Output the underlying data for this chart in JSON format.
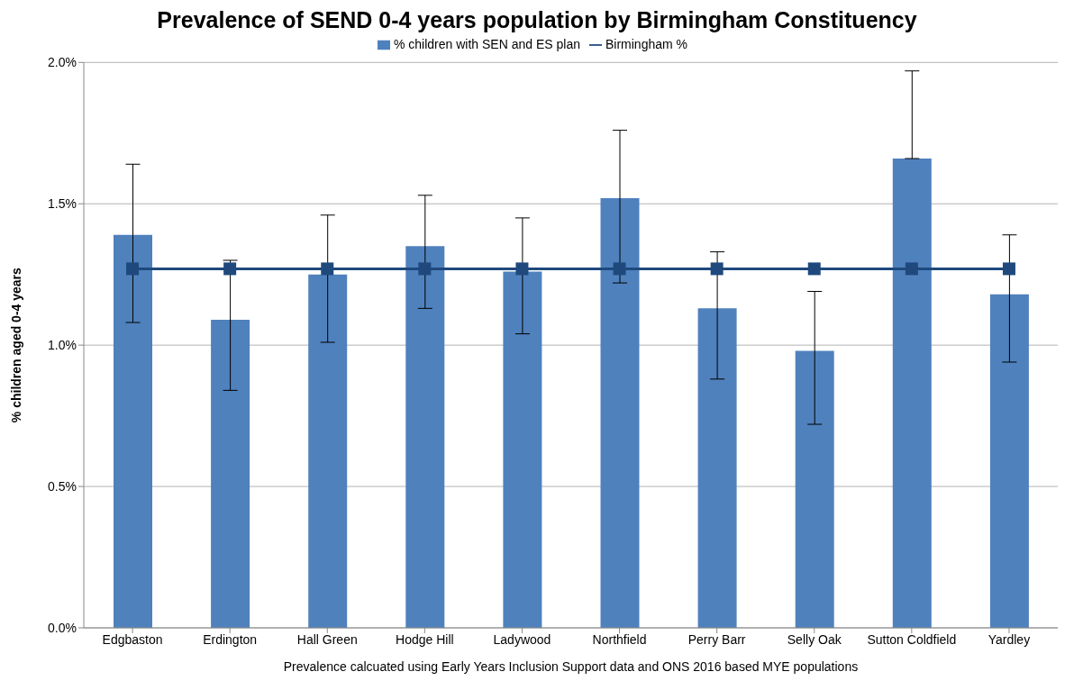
{
  "chart_data": {
    "type": "bar",
    "title": "Prevalence of SEND 0-4 years population by Birmingham Constituency",
    "xlabel": "Prevalence calcuated using Early Years Inclusion Support data and ONS 2016 based MYE populations",
    "ylabel": "% children aged 0-4 years",
    "categories": [
      "Edgbaston",
      "Erdington",
      "Hall Green",
      "Hodge Hill",
      "Ladywood",
      "Northfield",
      "Perry Barr",
      "Selly Oak",
      "Sutton Coldfield",
      "Yardley"
    ],
    "series": [
      {
        "name": "% children with SEN and ES plan",
        "color": "#4f81bd",
        "values": [
          1.39,
          1.09,
          1.25,
          1.35,
          1.26,
          1.52,
          1.13,
          0.98,
          1.66,
          1.18
        ],
        "errors": [
          [
            1.08,
            1.64
          ],
          [
            0.84,
            1.3
          ],
          [
            1.01,
            1.46
          ],
          [
            1.13,
            1.53
          ],
          [
            1.04,
            1.45
          ],
          [
            1.22,
            1.76
          ],
          [
            0.88,
            1.33
          ],
          [
            0.72,
            1.19
          ],
          [
            1.66,
            1.97
          ],
          [
            0.94,
            1.39
          ]
        ]
      },
      {
        "name": "Birmingham %",
        "type": "line",
        "color": "#1f497d",
        "values": [
          1.27,
          1.27,
          1.27,
          1.27,
          1.27,
          1.27,
          1.27,
          1.27,
          1.27,
          1.27
        ]
      }
    ],
    "ylim": [
      0,
      2
    ],
    "yticks": [
      {
        "value": 0,
        "label": "0.0%"
      },
      {
        "value": 0.5,
        "label": "0.5%"
      },
      {
        "value": 1,
        "label": "1.0%"
      },
      {
        "value": 1.5,
        "label": "1.5%"
      },
      {
        "value": 2,
        "label": "2.0%"
      }
    ],
    "grid": "y",
    "legend": "top",
    "marker": "square"
  }
}
